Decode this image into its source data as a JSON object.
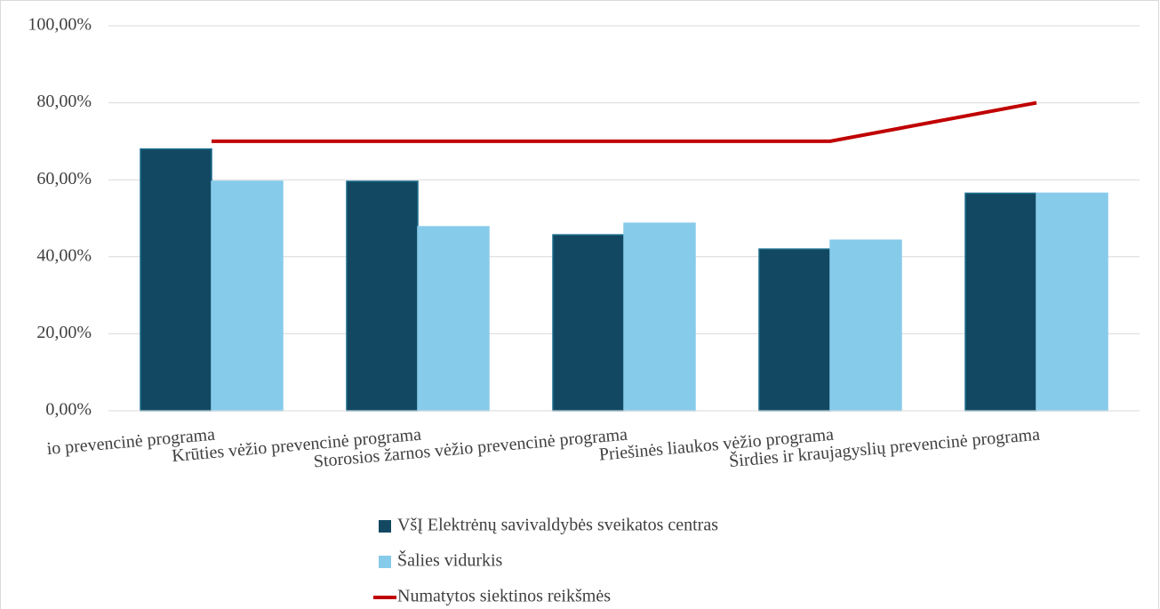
{
  "chart_data": {
    "type": "bar",
    "categories": [
      "io prevencinė programa",
      "Krūties vėžio prevencinė programa",
      "Storosios žarnos vėžio prevencinė programa",
      "Priešinės liaukos vėžio programa",
      "Širdies ir kraujagyslių prevencinė programa"
    ],
    "series": [
      {
        "name": "VšĮ Elektrėnų savivaldybės sveikatos centras",
        "color": "#124861",
        "type": "bar",
        "values": [
          68,
          59.6,
          45.7,
          42,
          56.5
        ]
      },
      {
        "name": "Šalies vidurkis",
        "color": "#87cbeb",
        "type": "bar",
        "values": [
          59.6,
          47.8,
          48.7,
          44.3,
          56.5
        ]
      },
      {
        "name": "Numatytos siektinos reikšmės",
        "color": "#c00000",
        "type": "line",
        "values": [
          70,
          70,
          70,
          70,
          80
        ]
      }
    ],
    "ylim": [
      0,
      100
    ],
    "yticks": [
      {
        "value": 0,
        "label": "0,00%"
      },
      {
        "value": 20,
        "label": "20,00%"
      },
      {
        "value": 40,
        "label": "40,00%"
      },
      {
        "value": 60,
        "label": "60,00%"
      },
      {
        "value": 80,
        "label": "80,00%"
      },
      {
        "value": 100,
        "label": "100,00%"
      }
    ],
    "grid": true,
    "legend": "bottom"
  }
}
